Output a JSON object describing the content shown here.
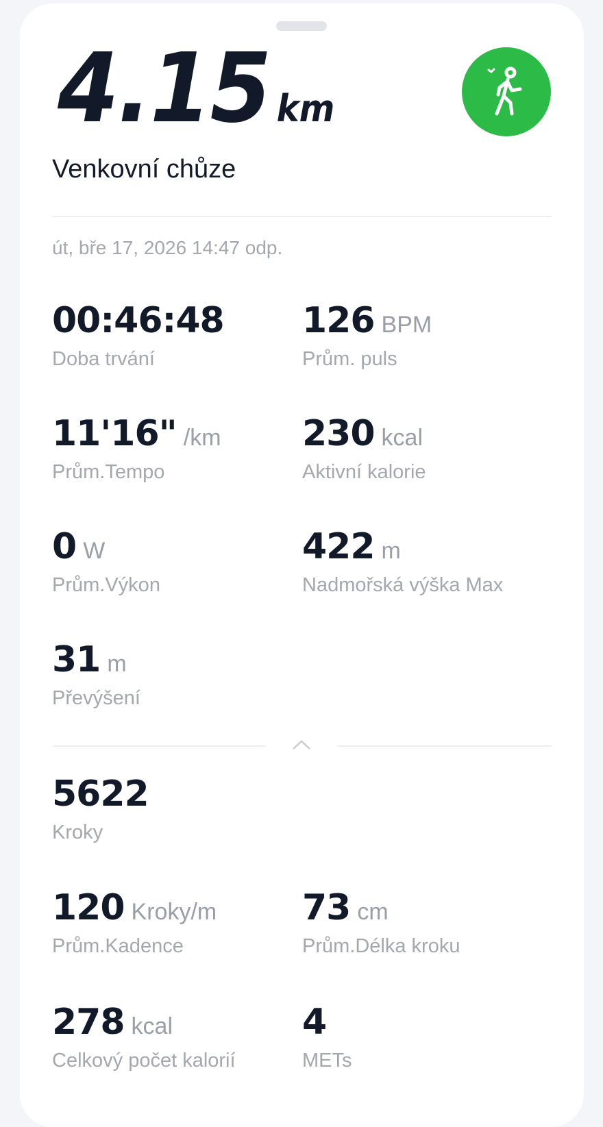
{
  "header": {
    "distance": "4.15",
    "distance_unit": "km",
    "activity": "Venkovní chůze",
    "activity_icon": "walking-person-icon",
    "accent": "#2bbb46"
  },
  "date": "út, bře 17, 2026 14:47 odp.",
  "stats": [
    {
      "value": "00:46:48",
      "unit": "",
      "label": "Doba trvání"
    },
    {
      "value": "126",
      "unit": "BPM",
      "label": "Prům. puls"
    },
    {
      "value": "11'16\"",
      "unit": "/km",
      "label": "Prům.Tempo"
    },
    {
      "value": "230",
      "unit": "kcal",
      "label": "Aktivní kalorie"
    },
    {
      "value": "0",
      "unit": "W",
      "label": "Prům.Výkon"
    },
    {
      "value": "422",
      "unit": "m",
      "label": "Nadmořská výška Max"
    },
    {
      "value": "31",
      "unit": "m",
      "label": "Převýšení"
    }
  ],
  "extra": [
    {
      "value": "5622",
      "unit": "",
      "label": "Kroky"
    },
    {
      "value": "120",
      "unit": "Kroky/m",
      "label": "Prům.Kadence"
    },
    {
      "value": "73",
      "unit": "cm",
      "label": "Prům.Délka kroku"
    },
    {
      "value": "278",
      "unit": "kcal",
      "label": "Celkový počet kalorií"
    },
    {
      "value": "4",
      "unit": "",
      "label": "METs"
    }
  ]
}
